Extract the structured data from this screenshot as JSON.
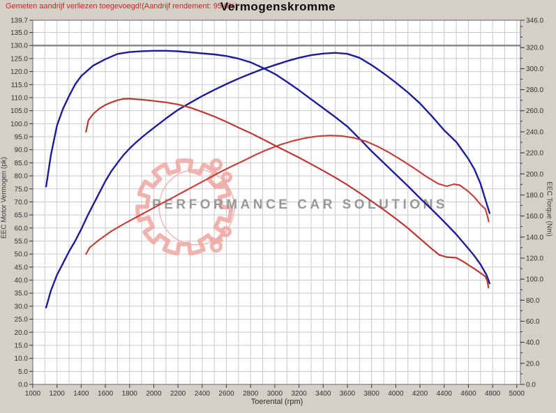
{
  "header": {
    "note": "Gemeten aandrijf verliezen toegevoegd!(Aandrijf rendement: 95.0%)",
    "note_color": "#cc2222",
    "title": "Vermogenskromme"
  },
  "chart_data": {
    "type": "line",
    "title": "Vermogenskromme",
    "xlabel": "Toerental (rpm)",
    "ylabel_left": "EEC Motor Vermogen (pk)",
    "ylabel_right": "EEC Torque (Nm)",
    "xlim": [
      1000,
      5030
    ],
    "ylim_left": [
      0,
      139.7
    ],
    "ylim_right": [
      0,
      346
    ],
    "grid": {
      "x_minor_step": 100,
      "y_left_step": 5,
      "emphasis_left_value": 130,
      "grid_color": "#c9c9c9",
      "emphasis_color": "#8a8a8a"
    },
    "x_tick_labels": [
      "1000",
      "1200",
      "1400",
      "1600",
      "1800",
      "2000",
      "2200",
      "2400",
      "2600",
      "2800",
      "3000",
      "3200",
      "3400",
      "3600",
      "3800",
      "4000",
      "4200",
      "4400",
      "4600",
      "4800",
      "5000"
    ],
    "left_tick_labels": [
      "139.7",
      "135.0",
      "130.0",
      "125.0",
      "120.0",
      "115.0",
      "110.0",
      "105.0",
      "100.0",
      "95.0",
      "90.0",
      "85.0",
      "80.0",
      "75.0",
      "70.0",
      "65.0",
      "60.0",
      "55.0",
      "50.0",
      "45.0",
      "40.0",
      "35.0",
      "30.0",
      "25.0",
      "20.0",
      "15.0",
      "10.0",
      "5.0",
      "0.0"
    ],
    "right_tick_labels": [
      "346.0",
      "320.0",
      "300.0",
      "280.0",
      "260.0",
      "240.0",
      "220.0",
      "200.0",
      "180.0",
      "160.0",
      "140.0",
      "120.0",
      "100.0",
      "80.0",
      "60.0",
      "40.0",
      "20.0",
      "0.0"
    ],
    "right_minor_step": 10,
    "watermark": {
      "text": "PERFORMANCE CAR SOLUTIONS",
      "text_color": "#989898",
      "gear_color": "#f0aba6"
    },
    "series": [
      {
        "name": "power-blue",
        "axis": "left",
        "color": "#1c1c96",
        "width": 2.4,
        "points": [
          [
            1110,
            29.5
          ],
          [
            1150,
            36
          ],
          [
            1200,
            42
          ],
          [
            1250,
            46.5
          ],
          [
            1300,
            51
          ],
          [
            1350,
            55
          ],
          [
            1400,
            59.5
          ],
          [
            1450,
            64.5
          ],
          [
            1500,
            69
          ],
          [
            1550,
            73.5
          ],
          [
            1600,
            78
          ],
          [
            1650,
            81.8
          ],
          [
            1700,
            85
          ],
          [
            1750,
            88
          ],
          [
            1800,
            90.5
          ],
          [
            1850,
            92.7
          ],
          [
            1900,
            94.7
          ],
          [
            1950,
            96.6
          ],
          [
            2000,
            98.4
          ],
          [
            2100,
            102
          ],
          [
            2200,
            105.3
          ],
          [
            2300,
            108
          ],
          [
            2400,
            110.6
          ],
          [
            2500,
            113
          ],
          [
            2600,
            115.2
          ],
          [
            2700,
            117.3
          ],
          [
            2800,
            119.2
          ],
          [
            2900,
            121
          ],
          [
            3000,
            122.5
          ],
          [
            3100,
            124
          ],
          [
            3200,
            125.3
          ],
          [
            3300,
            126.3
          ],
          [
            3400,
            126.9
          ],
          [
            3500,
            127.2
          ],
          [
            3600,
            126.8
          ],
          [
            3700,
            125.3
          ],
          [
            3800,
            122.5
          ],
          [
            3900,
            119.3
          ],
          [
            4000,
            115.8
          ],
          [
            4100,
            112
          ],
          [
            4200,
            107.8
          ],
          [
            4300,
            102.8
          ],
          [
            4400,
            97.5
          ],
          [
            4500,
            93
          ],
          [
            4600,
            86.5
          ],
          [
            4650,
            82.5
          ],
          [
            4700,
            77
          ],
          [
            4750,
            69.5
          ],
          [
            4775,
            65.7
          ]
        ]
      },
      {
        "name": "torque-blue",
        "axis": "right",
        "color": "#1c1c96",
        "width": 2.4,
        "points": [
          [
            1110,
            188
          ],
          [
            1150,
            218
          ],
          [
            1200,
            246
          ],
          [
            1250,
            262
          ],
          [
            1300,
            274
          ],
          [
            1350,
            285
          ],
          [
            1400,
            293
          ],
          [
            1500,
            303
          ],
          [
            1600,
            309
          ],
          [
            1700,
            314
          ],
          [
            1800,
            315.8
          ],
          [
            1900,
            316.6
          ],
          [
            2000,
            317
          ],
          [
            2100,
            317
          ],
          [
            2200,
            316.5
          ],
          [
            2300,
            315.5
          ],
          [
            2400,
            314.5
          ],
          [
            2500,
            313.5
          ],
          [
            2600,
            312
          ],
          [
            2700,
            309.5
          ],
          [
            2800,
            306
          ],
          [
            2900,
            300.8
          ],
          [
            3000,
            295
          ],
          [
            3100,
            287.5
          ],
          [
            3200,
            279.5
          ],
          [
            3300,
            271
          ],
          [
            3400,
            262.5
          ],
          [
            3500,
            254
          ],
          [
            3600,
            245
          ],
          [
            3700,
            233.5
          ],
          [
            3800,
            221.5
          ],
          [
            3900,
            210.5
          ],
          [
            4000,
            199.5
          ],
          [
            4100,
            188.5
          ],
          [
            4200,
            177
          ],
          [
            4300,
            166
          ],
          [
            4400,
            154.5
          ],
          [
            4500,
            142.5
          ],
          [
            4600,
            129
          ],
          [
            4650,
            122
          ],
          [
            4700,
            114
          ],
          [
            4750,
            104
          ],
          [
            4775,
            96
          ]
        ]
      },
      {
        "name": "power-red",
        "axis": "left",
        "color": "#c2423c",
        "width": 2.2,
        "points": [
          [
            1440,
            50
          ],
          [
            1470,
            52.5
          ],
          [
            1550,
            55.5
          ],
          [
            1650,
            58.8
          ],
          [
            1750,
            61.5
          ],
          [
            1850,
            64
          ],
          [
            1950,
            66.5
          ],
          [
            2050,
            69
          ],
          [
            2150,
            71.5
          ],
          [
            2250,
            74
          ],
          [
            2350,
            76.5
          ],
          [
            2450,
            79
          ],
          [
            2550,
            81.5
          ],
          [
            2650,
            83.8
          ],
          [
            2750,
            86
          ],
          [
            2850,
            88.3
          ],
          [
            2950,
            90.3
          ],
          [
            3050,
            92
          ],
          [
            3150,
            93.4
          ],
          [
            3250,
            94.5
          ],
          [
            3350,
            95.2
          ],
          [
            3450,
            95.5
          ],
          [
            3550,
            95.3
          ],
          [
            3650,
            94.6
          ],
          [
            3750,
            93.3
          ],
          [
            3850,
            91.3
          ],
          [
            3950,
            88.8
          ],
          [
            4050,
            86
          ],
          [
            4150,
            83
          ],
          [
            4250,
            79.8
          ],
          [
            4350,
            77
          ],
          [
            4420,
            76
          ],
          [
            4480,
            76.8
          ],
          [
            4530,
            76.4
          ],
          [
            4600,
            74
          ],
          [
            4650,
            71.8
          ],
          [
            4700,
            69
          ],
          [
            4740,
            67.3
          ],
          [
            4758,
            64.5
          ],
          [
            4768,
            62.5
          ]
        ]
      },
      {
        "name": "torque-red",
        "axis": "right",
        "color": "#bc3732",
        "width": 2.2,
        "points": [
          [
            1440,
            240
          ],
          [
            1460,
            251
          ],
          [
            1500,
            257
          ],
          [
            1550,
            262
          ],
          [
            1600,
            265.5
          ],
          [
            1650,
            268
          ],
          [
            1700,
            270
          ],
          [
            1750,
            271.3
          ],
          [
            1800,
            271.4
          ],
          [
            1850,
            271
          ],
          [
            1900,
            270.5
          ],
          [
            1950,
            270
          ],
          [
            2000,
            269.3
          ],
          [
            2100,
            268
          ],
          [
            2200,
            266
          ],
          [
            2300,
            263
          ],
          [
            2400,
            259
          ],
          [
            2500,
            254.5
          ],
          [
            2600,
            249.5
          ],
          [
            2700,
            244
          ],
          [
            2800,
            238.8
          ],
          [
            2900,
            233
          ],
          [
            3000,
            227
          ],
          [
            3100,
            221.3
          ],
          [
            3200,
            215.5
          ],
          [
            3300,
            209.3
          ],
          [
            3400,
            203
          ],
          [
            3500,
            196.5
          ],
          [
            3600,
            189.5
          ],
          [
            3700,
            182
          ],
          [
            3800,
            174
          ],
          [
            3900,
            166
          ],
          [
            4000,
            157.5
          ],
          [
            4100,
            148.5
          ],
          [
            4200,
            138.5
          ],
          [
            4300,
            128.5
          ],
          [
            4360,
            123
          ],
          [
            4420,
            121
          ],
          [
            4500,
            120.3
          ],
          [
            4560,
            116.5
          ],
          [
            4600,
            113.5
          ],
          [
            4650,
            109.8
          ],
          [
            4700,
            105.8
          ],
          [
            4740,
            102.5
          ],
          [
            4756,
            98.5
          ],
          [
            4766,
            92
          ]
        ]
      }
    ]
  }
}
